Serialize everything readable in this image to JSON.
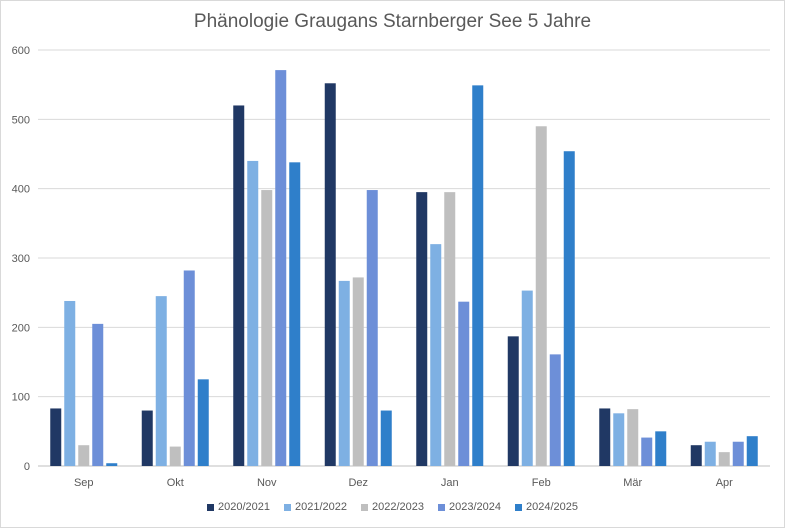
{
  "chart_data": {
    "type": "bar",
    "title": "Phänologie Graugans Starnberger See  5 Jahre",
    "xlabel": "",
    "ylabel": "",
    "categories": [
      "Sep",
      "Okt",
      "Nov",
      "Dez",
      "Jan",
      "Feb",
      "Mär",
      "Apr"
    ],
    "ylim": [
      0,
      600
    ],
    "yticks": [
      0,
      100,
      200,
      300,
      400,
      500,
      600
    ],
    "grid": true,
    "legend_position": "bottom",
    "series": [
      {
        "name": "2020/2021",
        "color": "#203864",
        "values": [
          83,
          80,
          520,
          552,
          395,
          187,
          83,
          30
        ]
      },
      {
        "name": "2021/2022",
        "color": "#7eb0e3",
        "values": [
          238,
          245,
          440,
          267,
          320,
          253,
          76,
          35
        ]
      },
      {
        "name": "2022/2023",
        "color": "#bfbfbf",
        "values": [
          30,
          28,
          398,
          272,
          395,
          490,
          82,
          20
        ]
      },
      {
        "name": "2023/2024",
        "color": "#6d8fd8",
        "values": [
          205,
          282,
          571,
          398,
          237,
          161,
          41,
          35
        ]
      },
      {
        "name": "2024/2025",
        "color": "#2f7fca",
        "values": [
          4,
          125,
          438,
          80,
          549,
          454,
          50,
          43
        ]
      }
    ]
  }
}
